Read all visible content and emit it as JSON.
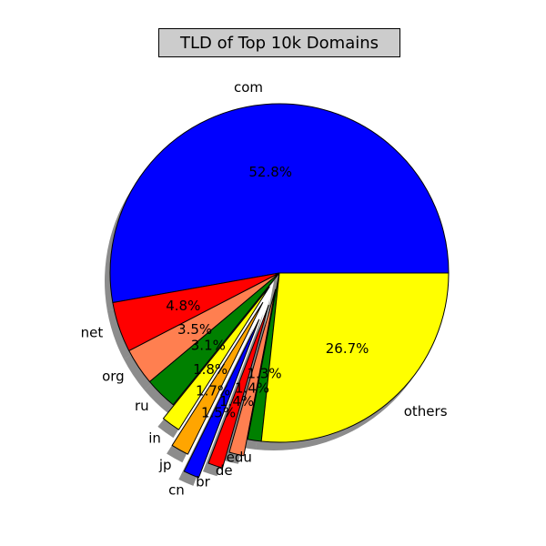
{
  "chart_data": {
    "type": "pie",
    "title": "TLD of Top 10k Domains",
    "start_angle_deg": 0,
    "direction": "counterclockwise",
    "shadow": true,
    "slices": [
      {
        "label": "com",
        "value": 52.8,
        "pct_label": "52.8%",
        "color": "#0000ff",
        "explode": 0
      },
      {
        "label": "net",
        "value": 4.8,
        "pct_label": "4.8%",
        "color": "#ff0000",
        "explode": 0
      },
      {
        "label": "org",
        "value": 3.5,
        "pct_label": "3.5%",
        "color": "#ff7f50",
        "explode": 0
      },
      {
        "label": "ru",
        "value": 3.1,
        "pct_label": "3.1%",
        "color": "#008000",
        "explode": 0
      },
      {
        "label": "in",
        "value": 1.8,
        "pct_label": "1.8%",
        "color": "#ffff00",
        "explode": 0.1
      },
      {
        "label": "jp",
        "value": 1.7,
        "pct_label": "1.7%",
        "color": "#ffa500",
        "explode": 0.2
      },
      {
        "label": "cn",
        "value": 1.5,
        "pct_label": "1.5%",
        "color": "#0000ff",
        "explode": 0.3
      },
      {
        "label": "br",
        "value": 1.4,
        "pct_label": "1.4%",
        "color": "#ff0000",
        "explode": 0.2
      },
      {
        "label": "de",
        "value": 1.4,
        "pct_label": "1.4%",
        "color": "#ff7f50",
        "explode": 0.1
      },
      {
        "label": "edu",
        "value": 1.3,
        "pct_label": "1.3%",
        "color": "#008000",
        "explode": 0
      },
      {
        "label": "others",
        "value": 26.7,
        "pct_label": "26.7%",
        "color": "#ffff00",
        "explode": 0
      }
    ]
  }
}
